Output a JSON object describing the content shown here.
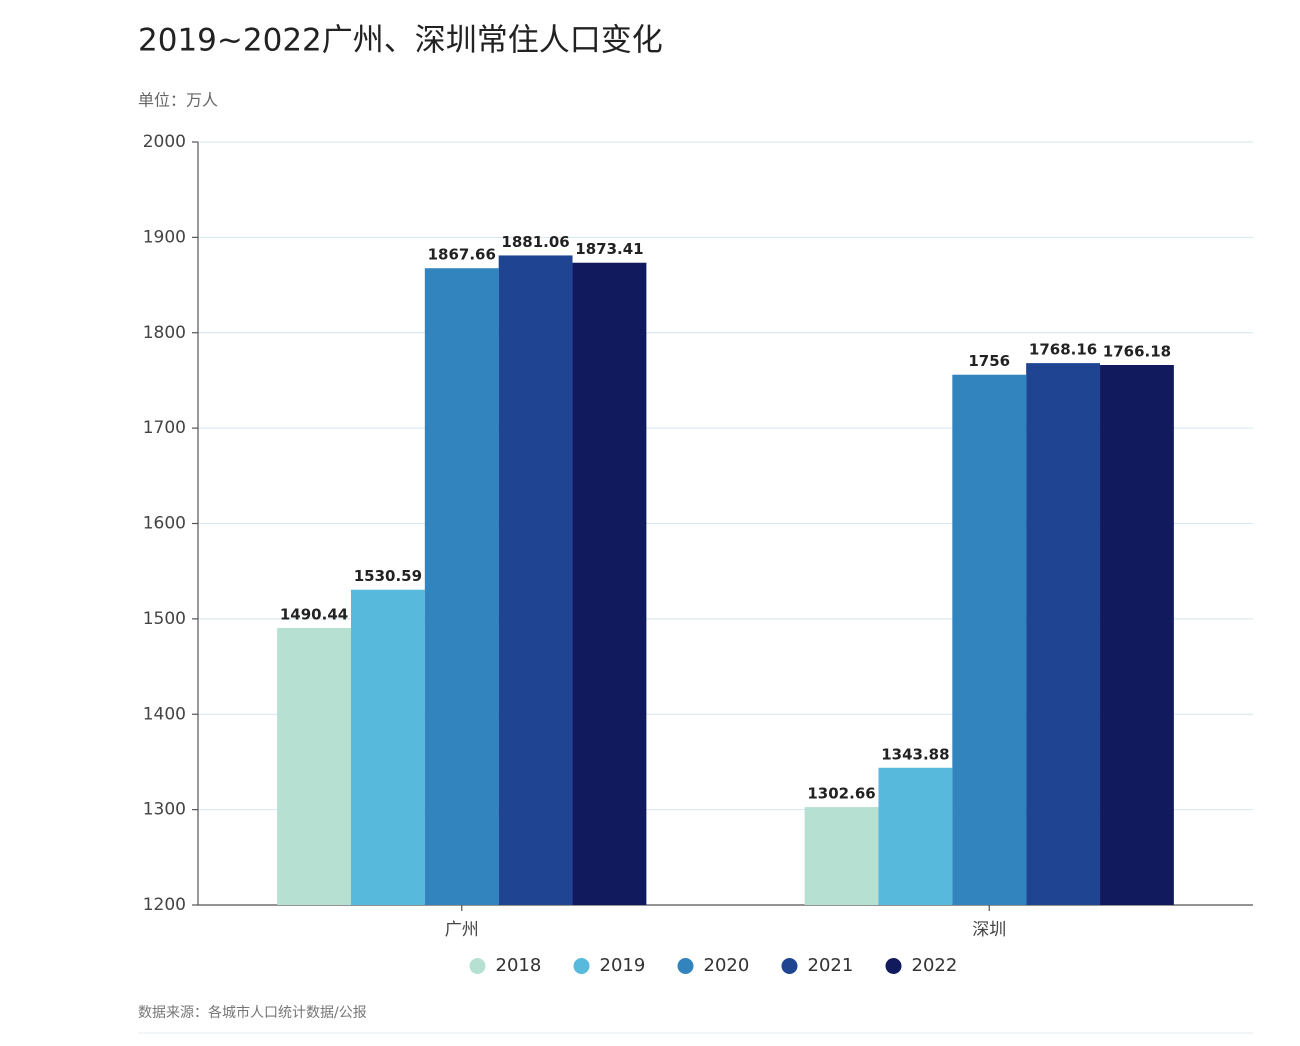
{
  "chart_data": {
    "type": "bar",
    "title": "2019~2022广州、深圳常住人口变化",
    "subtitle": "单位：万人",
    "source": "数据来源：各城市人口统计数据/公报",
    "categories": [
      "广州",
      "深圳"
    ],
    "series": [
      {
        "name": "2018",
        "color": "#b6e0d2",
        "values": [
          1490.44,
          1302.66
        ]
      },
      {
        "name": "2019",
        "color": "#57b9dc",
        "values": [
          1530.59,
          1343.88
        ]
      },
      {
        "name": "2020",
        "color": "#3184be",
        "values": [
          1867.66,
          1756
        ]
      },
      {
        "name": "2021",
        "color": "#1f4592",
        "values": [
          1881.06,
          1768.16
        ]
      },
      {
        "name": "2022",
        "color": "#121a5e",
        "values": [
          1873.41,
          1766.18
        ]
      }
    ],
    "ylim": [
      1200,
      2000
    ],
    "yticks": [
      1200,
      1300,
      1400,
      1500,
      1600,
      1700,
      1800,
      1900,
      2000
    ],
    "grid": true
  }
}
